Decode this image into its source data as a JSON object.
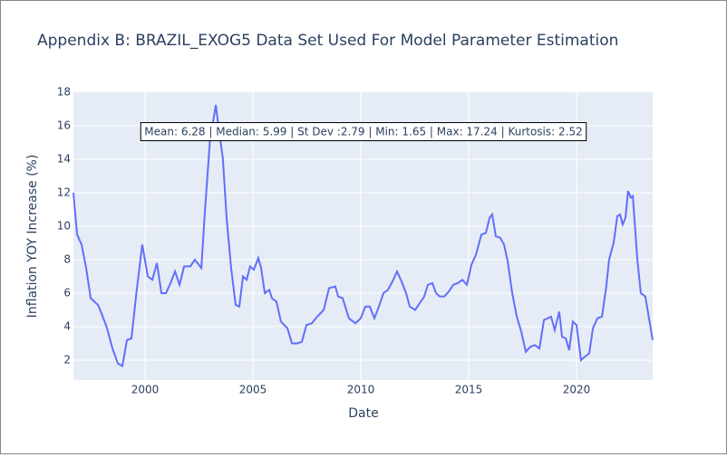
{
  "chart_data": {
    "type": "line",
    "title": "Appendix B: BRAZIL_EXOG5 Data Set Used For Model Parameter Estimation",
    "x_label": "Date",
    "y_label": "Inflation YOY Increase (%)",
    "annotation": "Mean: 6.28 | Median: 5.99 | St Dev :2.79 | Min: 1.65 | Max: 17.24 | Kurtosis: 2.52",
    "grid": true,
    "xlim": [
      1996.68,
      2023.53
    ],
    "xticks": [
      2000,
      2005,
      2010,
      2015,
      2020
    ],
    "ylim": [
      0.81,
      18.05
    ],
    "yticks": [
      2,
      4,
      6,
      8,
      10,
      12,
      14,
      16,
      18
    ],
    "x": [
      1996.68,
      1996.85,
      1997.06,
      1997.27,
      1997.48,
      1997.82,
      1997.98,
      1998.24,
      1998.49,
      1998.74,
      1998.95,
      1999.16,
      1999.37,
      1999.58,
      1999.87,
      2000.13,
      2000.34,
      2000.55,
      2000.76,
      2000.97,
      2001.18,
      2001.39,
      2001.6,
      2001.81,
      2002.1,
      2002.31,
      2002.61,
      2002.77,
      2003.03,
      2003.19,
      2003.28,
      2003.4,
      2003.61,
      2003.78,
      2003.99,
      2004.2,
      2004.37,
      2004.54,
      2004.71,
      2004.87,
      2005.04,
      2005.25,
      2005.38,
      2005.55,
      2005.76,
      2005.88,
      2006.09,
      2006.3,
      2006.6,
      2006.81,
      2007.06,
      2007.27,
      2007.48,
      2007.73,
      2007.98,
      2008.28,
      2008.53,
      2008.82,
      2008.95,
      2009.16,
      2009.45,
      2009.75,
      2010.0,
      2010.21,
      2010.42,
      2010.63,
      2010.84,
      2011.05,
      2011.26,
      2011.47,
      2011.68,
      2011.89,
      2012.1,
      2012.27,
      2012.52,
      2012.73,
      2012.94,
      2013.11,
      2013.32,
      2013.49,
      2013.66,
      2013.87,
      2014.08,
      2014.29,
      2014.5,
      2014.71,
      2014.92,
      2015.13,
      2015.34,
      2015.59,
      2015.8,
      2015.97,
      2016.09,
      2016.26,
      2016.47,
      2016.64,
      2016.81,
      2017.02,
      2017.23,
      2017.44,
      2017.65,
      2017.86,
      2018.07,
      2018.28,
      2018.49,
      2018.66,
      2018.82,
      2018.99,
      2019.2,
      2019.33,
      2019.5,
      2019.66,
      2019.83,
      2020.0,
      2020.21,
      2020.38,
      2020.59,
      2020.76,
      2020.97,
      2021.18,
      2021.39,
      2021.51,
      2021.72,
      2021.89,
      2022.02,
      2022.14,
      2022.27,
      2022.39,
      2022.52,
      2022.61,
      2022.82,
      2022.98,
      2023.19,
      2023.36,
      2023.53
    ],
    "series": [
      {
        "name": "Inflation",
        "color": "#636efa",
        "values": [
          12,
          9.5,
          8.9,
          7.5,
          5.7,
          5.3,
          4.8,
          3.9,
          2.7,
          1.8,
          1.65,
          3.2,
          3.3,
          5.8,
          8.9,
          7.0,
          6.8,
          7.8,
          6.0,
          6.0,
          6.6,
          7.3,
          6.5,
          7.6,
          7.6,
          8.0,
          7.5,
          10.8,
          15.5,
          16.5,
          17.24,
          16.0,
          14.0,
          10.5,
          7.5,
          5.3,
          5.2,
          7.0,
          6.8,
          7.6,
          7.4,
          8.1,
          7.5,
          6.0,
          6.2,
          5.7,
          5.5,
          4.3,
          3.9,
          3.0,
          3.0,
          3.1,
          4.1,
          4.2,
          4.6,
          5.0,
          6.3,
          6.4,
          5.8,
          5.7,
          4.5,
          4.2,
          4.5,
          5.2,
          5.2,
          4.5,
          5.2,
          6.0,
          6.2,
          6.7,
          7.3,
          6.7,
          6.0,
          5.2,
          5.0,
          5.4,
          5.8,
          6.5,
          6.6,
          6.0,
          5.8,
          5.8,
          6.1,
          6.5,
          6.6,
          6.8,
          6.5,
          7.7,
          8.3,
          9.5,
          9.6,
          10.5,
          10.7,
          9.4,
          9.3,
          8.9,
          7.9,
          6.0,
          4.6,
          3.7,
          2.5,
          2.8,
          2.9,
          2.7,
          4.4,
          4.5,
          4.6,
          3.8,
          4.9,
          3.4,
          3.3,
          2.6,
          4.3,
          4.1,
          2.0,
          2.2,
          2.4,
          3.9,
          4.5,
          4.6,
          6.5,
          8.0,
          9.0,
          10.6,
          10.7,
          10.1,
          10.5,
          12.1,
          11.7,
          11.8,
          8.0,
          6.0,
          5.8,
          4.5,
          3.2
        ]
      }
    ]
  }
}
